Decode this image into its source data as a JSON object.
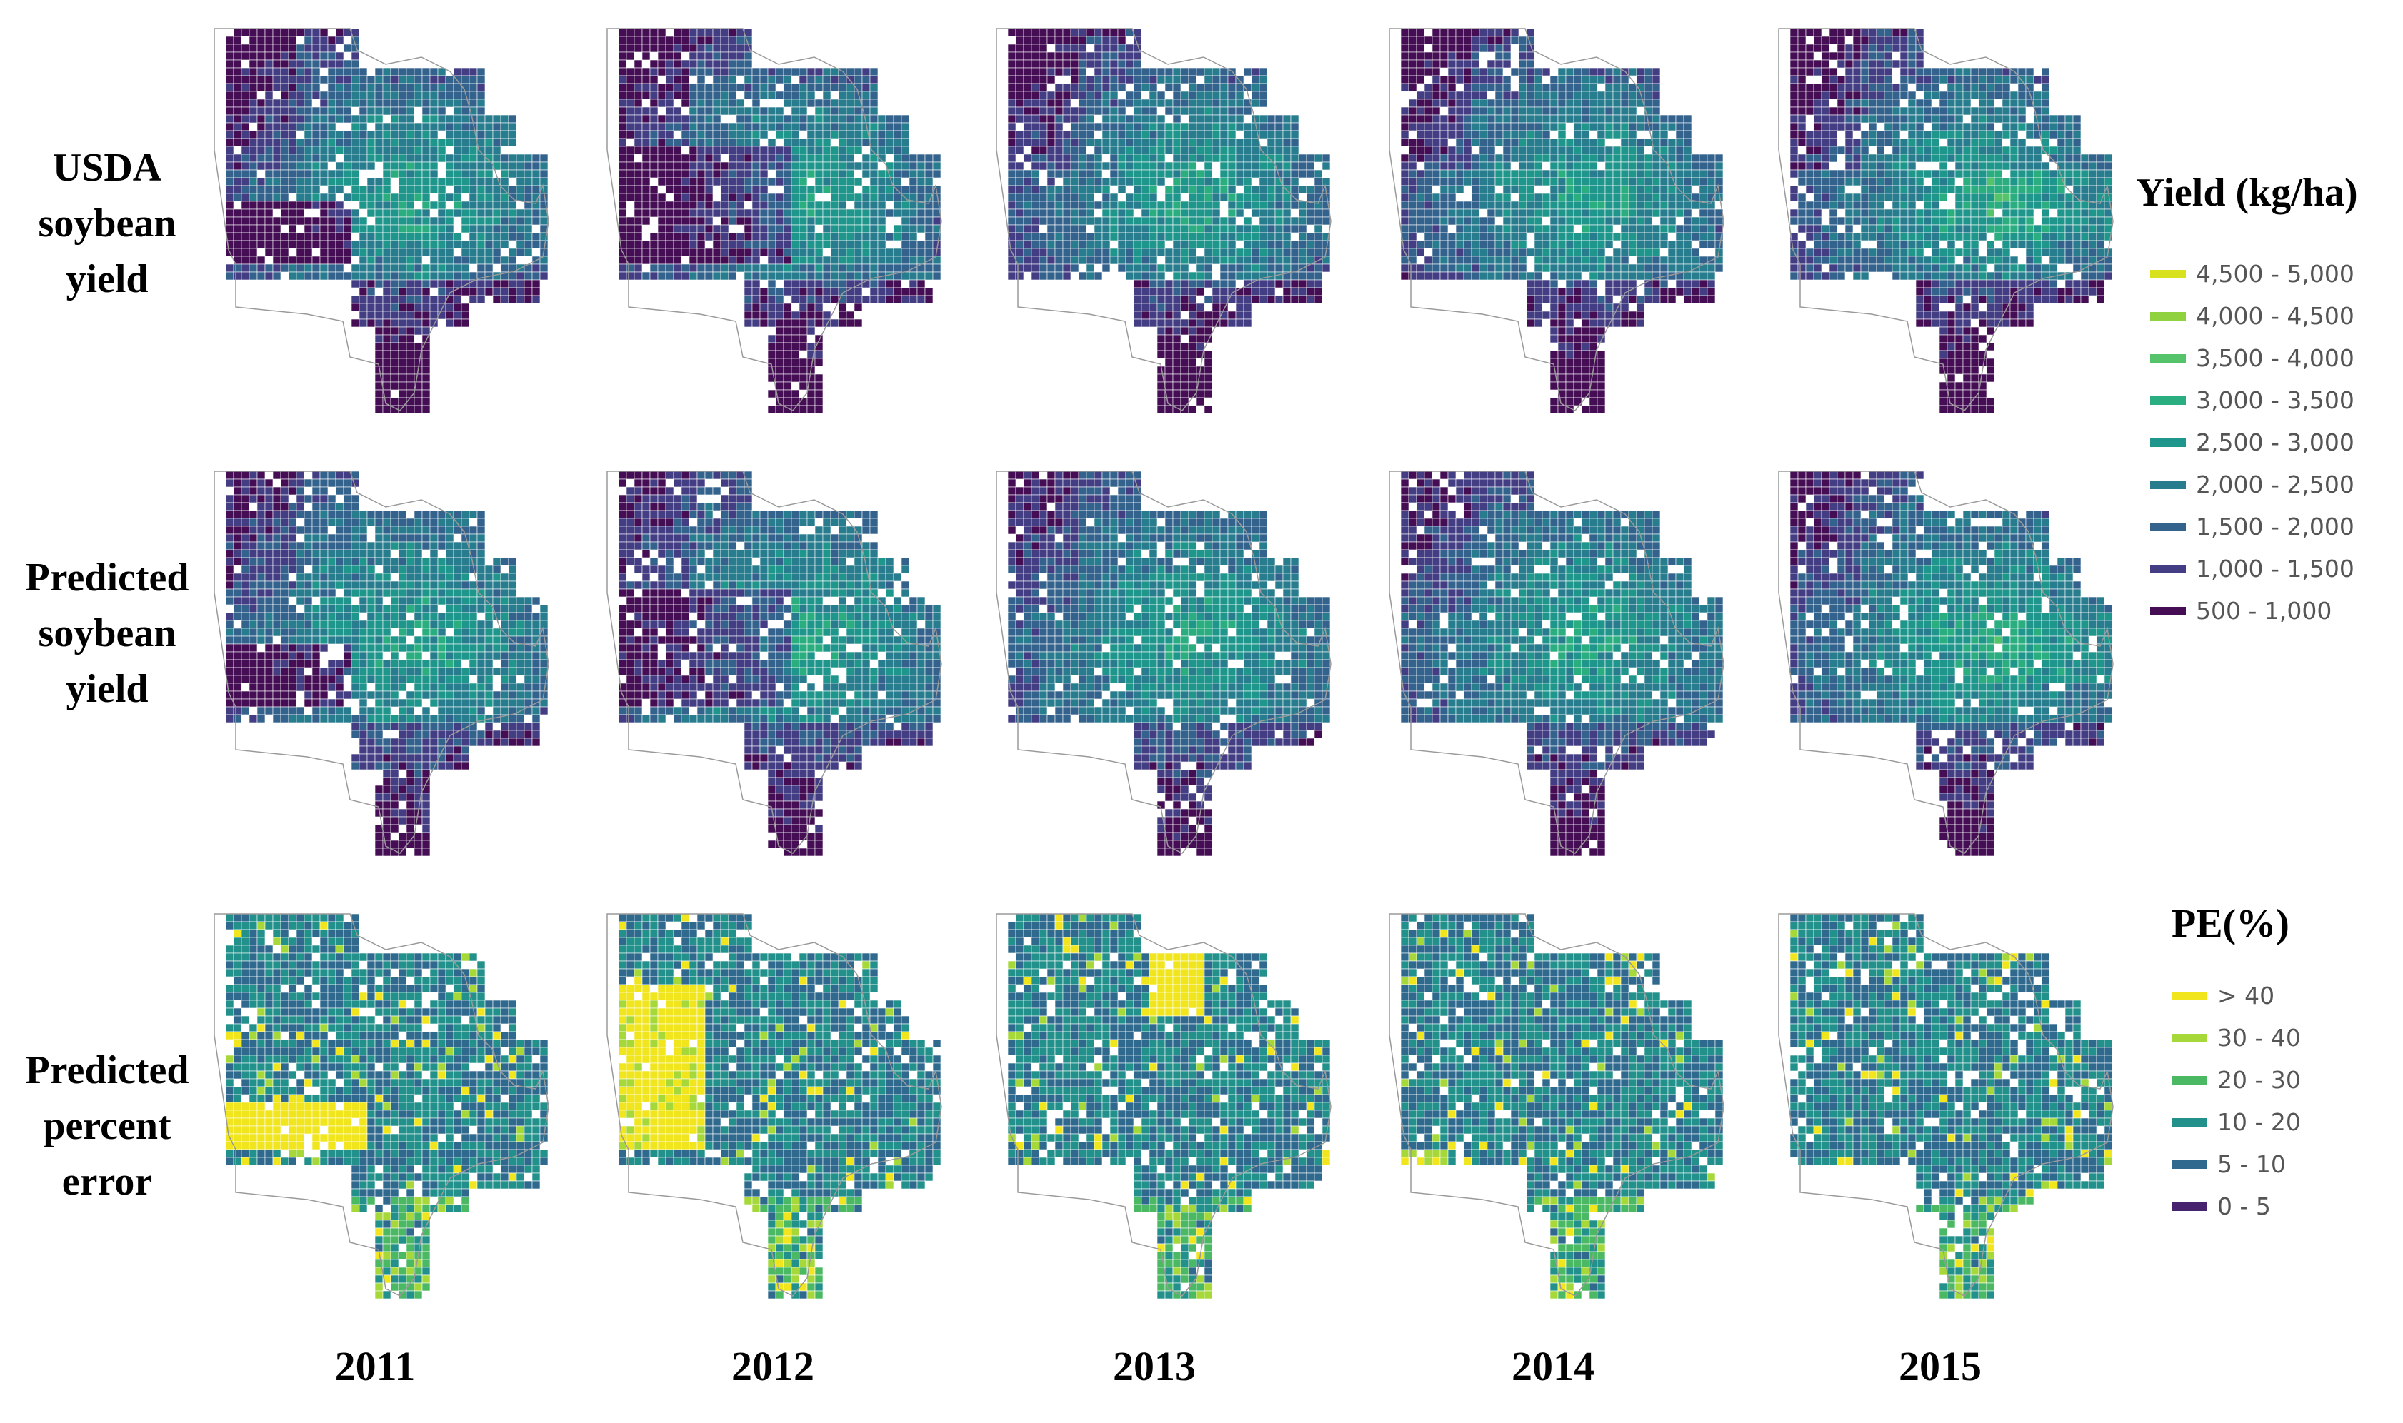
{
  "row_labels": {
    "usda": [
      "USDA",
      "soybean",
      "yield"
    ],
    "predicted": [
      "Predicted",
      "soybean",
      "yield"
    ],
    "error": [
      "Predicted",
      "percent",
      "error"
    ]
  },
  "years": [
    "2011",
    "2012",
    "2013",
    "2014",
    "2015"
  ],
  "yield_legend": {
    "title": "Yield (kg/ha)",
    "items": [
      {
        "label": "4,500 - 5,000",
        "color": "#d7e11e"
      },
      {
        "label": "4,000 - 4,500",
        "color": "#8fd13f"
      },
      {
        "label": "3,500 - 4,000",
        "color": "#55c36a"
      },
      {
        "label": "3,000 - 3,500",
        "color": "#2aae7f"
      },
      {
        "label": "2,500 - 3,000",
        "color": "#1f968b"
      },
      {
        "label": "2,000 - 2,500",
        "color": "#277c8e"
      },
      {
        "label": "1,500 - 2,000",
        "color": "#33628d"
      },
      {
        "label": "1,000 - 1,500",
        "color": "#433d84"
      },
      {
        "label": "500 - 1,000",
        "color": "#440d54"
      }
    ]
  },
  "error_legend": {
    "title": "PE(%)",
    "items": [
      {
        "label": "> 40",
        "color": "#f1e51d"
      },
      {
        "label": "30 - 40",
        "color": "#a5d838"
      },
      {
        "label": "20 - 30",
        "color": "#4bb864"
      },
      {
        "label": "10 - 20",
        "color": "#22918c"
      },
      {
        "label": "5 - 10",
        "color": "#2f6a8e"
      },
      {
        "label": "0 - 5",
        "color": "#46226f"
      }
    ]
  }
}
